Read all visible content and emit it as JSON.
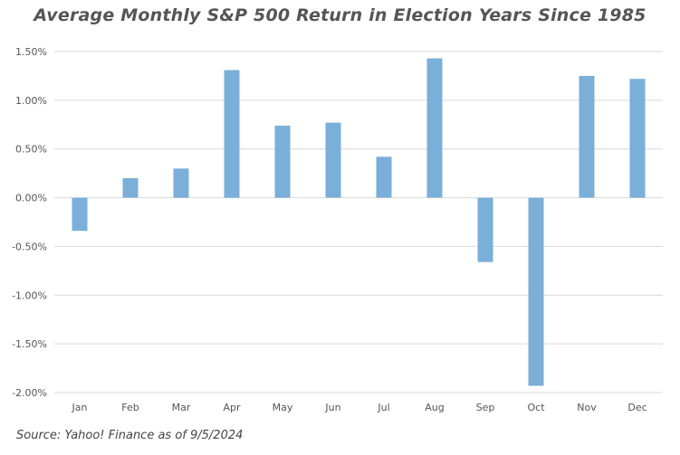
{
  "chart_data": {
    "type": "bar",
    "title": "Average Monthly S&P 500 Return in Election Years Since 1985",
    "categories": [
      "Jan",
      "Feb",
      "Mar",
      "Apr",
      "May",
      "Jun",
      "Jul",
      "Aug",
      "Sep",
      "Oct",
      "Nov",
      "Dec"
    ],
    "values": [
      -0.34,
      0.2,
      0.3,
      1.31,
      0.74,
      0.77,
      0.42,
      1.43,
      -0.66,
      -1.93,
      1.25,
      1.22
    ],
    "unit": "%",
    "ylim": [
      -2.0,
      1.5
    ],
    "yticks": [
      1.5,
      1.0,
      0.5,
      0.0,
      -0.5,
      -1.0,
      -1.5,
      -2.0
    ],
    "ytick_labels": [
      "1.50%",
      "1.00%",
      "0.50%",
      "0.00%",
      "-0.50%",
      "-1.00%",
      "-1.50%",
      "-2.00%"
    ],
    "grid": true,
    "bar_color": "#7aafd9",
    "grid_color": "#d9d9d9",
    "source": "Source: Yahoo! Finance as of 9/5/2024"
  }
}
